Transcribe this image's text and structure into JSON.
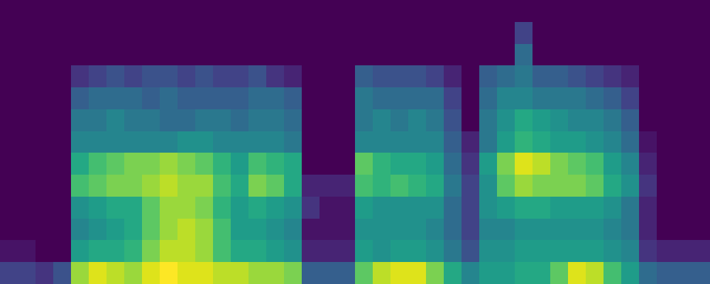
{
  "chart_data": {
    "type": "heatmap",
    "color": "Viridis",
    "tick_labels": false,
    "grid": false,
    "zlim": [
      0,
      1
    ],
    "cells": [
      [
        0.2,
        0.2,
        0.15,
        0.25,
        0.85,
        0.95,
        0.9,
        0.85,
        0.95,
        1.0,
        0.95,
        0.95,
        0.9,
        0.9,
        0.85,
        0.85,
        0.8,
        0.3,
        0.3,
        0.3,
        0.75,
        0.9,
        0.95,
        0.95,
        0.8,
        0.6,
        0.45,
        0.55,
        0.55,
        0.6,
        0.6,
        0.75,
        0.95,
        0.9,
        0.7,
        0.55,
        0.35,
        0.3,
        0.3,
        0.3
      ],
      [
        0.05,
        0.05,
        0,
        0,
        0.55,
        0.6,
        0.6,
        0.65,
        0.8,
        0.9,
        0.9,
        0.85,
        0.7,
        0.6,
        0.6,
        0.55,
        0.5,
        0.1,
        0.1,
        0.1,
        0.55,
        0.5,
        0.55,
        0.55,
        0.5,
        0.4,
        0.25,
        0.5,
        0.5,
        0.55,
        0.55,
        0.55,
        0.55,
        0.55,
        0.5,
        0.45,
        0.15,
        0.1,
        0.1,
        0.1
      ],
      [
        0,
        0,
        0,
        0,
        0.45,
        0.5,
        0.55,
        0.6,
        0.75,
        0.85,
        0.9,
        0.85,
        0.7,
        0.55,
        0.55,
        0.5,
        0.45,
        0.05,
        0.05,
        0.05,
        0.5,
        0.5,
        0.5,
        0.5,
        0.45,
        0.35,
        0.2,
        0.45,
        0.45,
        0.5,
        0.5,
        0.5,
        0.5,
        0.5,
        0.45,
        0.4,
        0.1,
        0,
        0,
        0
      ],
      [
        0,
        0,
        0,
        0,
        0.5,
        0.55,
        0.6,
        0.6,
        0.75,
        0.85,
        0.85,
        0.8,
        0.65,
        0.55,
        0.6,
        0.55,
        0.5,
        0.15,
        0.05,
        0.05,
        0.55,
        0.5,
        0.5,
        0.5,
        0.5,
        0.35,
        0.2,
        0.5,
        0.55,
        0.6,
        0.6,
        0.55,
        0.55,
        0.55,
        0.5,
        0.4,
        0.1,
        0,
        0,
        0
      ],
      [
        0,
        0,
        0,
        0,
        0.7,
        0.75,
        0.8,
        0.8,
        0.85,
        0.9,
        0.85,
        0.85,
        0.7,
        0.6,
        0.8,
        0.75,
        0.6,
        0.1,
        0.1,
        0.1,
        0.7,
        0.65,
        0.7,
        0.65,
        0.6,
        0.4,
        0.2,
        0.5,
        0.75,
        0.85,
        0.8,
        0.8,
        0.8,
        0.75,
        0.6,
        0.5,
        0.15,
        0,
        0,
        0
      ],
      [
        0,
        0,
        0,
        0,
        0.6,
        0.7,
        0.75,
        0.8,
        0.8,
        0.85,
        0.8,
        0.75,
        0.65,
        0.55,
        0.7,
        0.65,
        0.6,
        0,
        0,
        0,
        0.75,
        0.65,
        0.6,
        0.6,
        0.55,
        0.35,
        0.15,
        0.55,
        0.8,
        0.95,
        0.9,
        0.8,
        0.75,
        0.7,
        0.55,
        0.45,
        0.1,
        0,
        0,
        0
      ],
      [
        0,
        0,
        0,
        0,
        0.45,
        0.45,
        0.45,
        0.45,
        0.45,
        0.45,
        0.5,
        0.5,
        0.45,
        0.45,
        0.45,
        0.45,
        0.4,
        0,
        0,
        0,
        0.45,
        0.45,
        0.45,
        0.45,
        0.45,
        0.3,
        0.1,
        0.4,
        0.55,
        0.65,
        0.6,
        0.55,
        0.55,
        0.5,
        0.45,
        0.35,
        0.05,
        0,
        0,
        0
      ],
      [
        0,
        0,
        0,
        0,
        0.4,
        0.4,
        0.45,
        0.4,
        0.4,
        0.35,
        0.35,
        0.4,
        0.4,
        0.35,
        0.4,
        0.4,
        0.35,
        0,
        0,
        0,
        0.4,
        0.45,
        0.4,
        0.45,
        0.4,
        0.25,
        0,
        0.4,
        0.5,
        0.6,
        0.55,
        0.5,
        0.45,
        0.45,
        0.4,
        0.3,
        0,
        0,
        0,
        0
      ],
      [
        0,
        0,
        0,
        0,
        0.3,
        0.35,
        0.35,
        0.35,
        0.3,
        0.35,
        0.3,
        0.3,
        0.3,
        0.3,
        0.35,
        0.35,
        0.3,
        0,
        0,
        0,
        0.4,
        0.35,
        0.35,
        0.35,
        0.35,
        0.2,
        0,
        0.35,
        0.45,
        0.45,
        0.4,
        0.4,
        0.4,
        0.35,
        0.3,
        0.2,
        0,
        0,
        0,
        0
      ],
      [
        0,
        0,
        0,
        0,
        0.15,
        0.2,
        0.25,
        0.2,
        0.25,
        0.25,
        0.2,
        0.25,
        0.2,
        0.2,
        0.25,
        0.15,
        0.1,
        0,
        0,
        0,
        0.3,
        0.25,
        0.25,
        0.25,
        0.2,
        0.1,
        0,
        0.3,
        0.35,
        0.4,
        0.3,
        0.3,
        0.25,
        0.2,
        0.15,
        0.1,
        0,
        0,
        0,
        0
      ],
      [
        0,
        0,
        0,
        0,
        0,
        0,
        0,
        0,
        0,
        0,
        0,
        0,
        0,
        0,
        0,
        0,
        0,
        0,
        0,
        0,
        0,
        0,
        0,
        0,
        0,
        0,
        0,
        0,
        0,
        0.35,
        0,
        0,
        0,
        0,
        0,
        0,
        0,
        0,
        0,
        0
      ],
      [
        0,
        0,
        0,
        0,
        0,
        0,
        0,
        0,
        0,
        0,
        0,
        0,
        0,
        0,
        0,
        0,
        0,
        0,
        0,
        0,
        0,
        0,
        0,
        0,
        0,
        0,
        0,
        0,
        0,
        0.2,
        0,
        0,
        0,
        0,
        0,
        0,
        0,
        0,
        0,
        0
      ],
      [
        0,
        0,
        0,
        0,
        0,
        0,
        0,
        0,
        0,
        0,
        0,
        0,
        0,
        0,
        0,
        0,
        0,
        0,
        0,
        0,
        0,
        0,
        0,
        0,
        0,
        0,
        0,
        0,
        0,
        0,
        0,
        0,
        0,
        0,
        0,
        0,
        0,
        0,
        0,
        0
      ]
    ]
  }
}
